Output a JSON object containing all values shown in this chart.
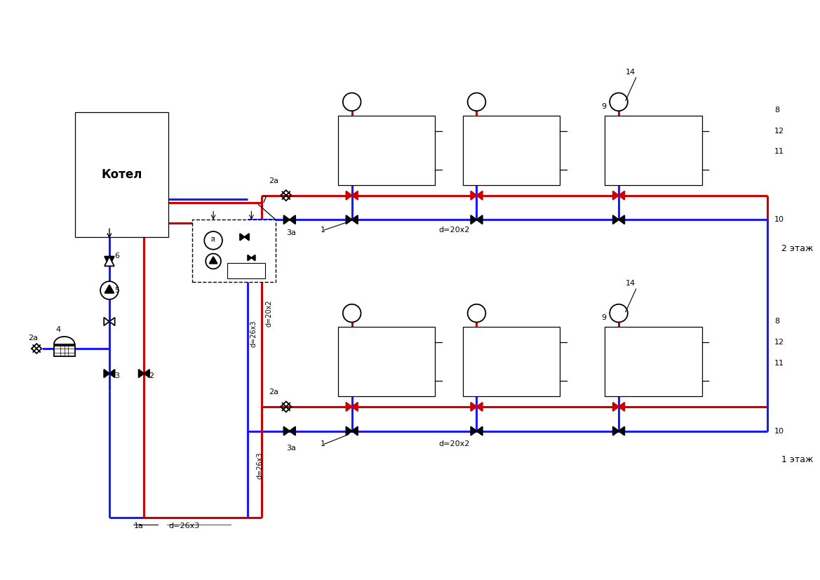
{
  "bg_color": "#ffffff",
  "red": "#cc0000",
  "blue": "#1a1aff",
  "black": "#000000",
  "lw_pipe": 2.2,
  "lw_sym": 1.3,
  "lw_thin": 0.9,
  "boiler_label": "Котел",
  "floor2_label": "2 этаж",
  "floor1_label": "1 этаж",
  "d20x2": "d=20x2",
  "d26x3_vert": "d=26x3",
  "d26x3_bot": "d=26x3",
  "labels": [
    "1а",
    "1",
    "2",
    "2а",
    "3",
    "3а",
    "4",
    "5",
    "6",
    "7",
    "8",
    "9",
    "10",
    "11",
    "12",
    "14"
  ]
}
